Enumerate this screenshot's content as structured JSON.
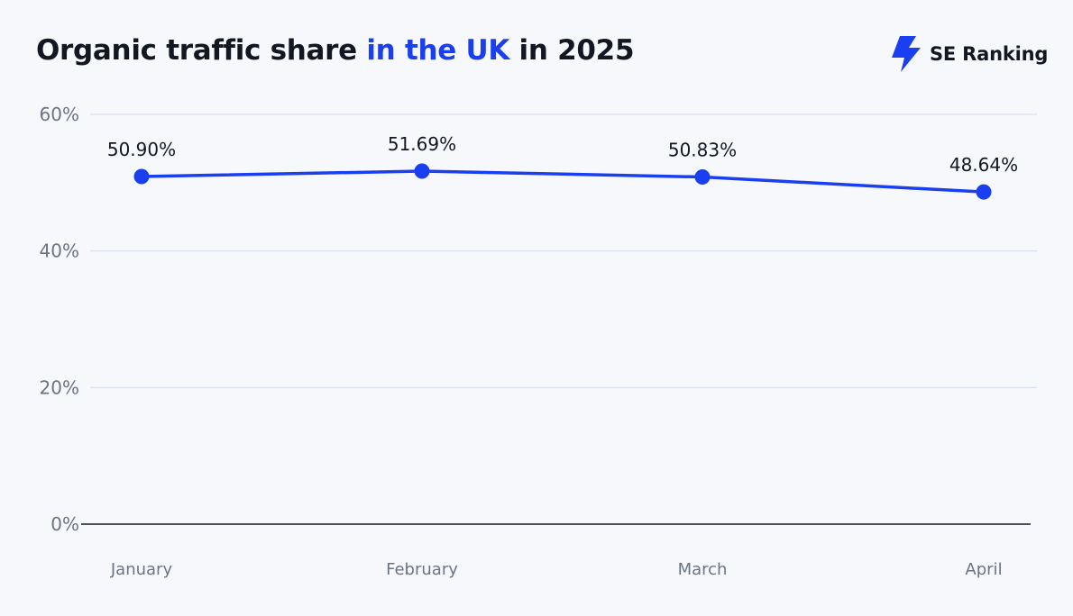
{
  "header": {
    "title_part1": "Organic traffic share ",
    "title_highlight": "in the UK",
    "title_part2": " in 2025"
  },
  "brand": {
    "name": "SE Ranking",
    "icon": "se-ranking-logo-icon"
  },
  "colors": {
    "accent": "#1a3ff0",
    "text": "#121722",
    "muted": "#6b7384",
    "grid": "#dde3ef",
    "background": "#f6f8fc"
  },
  "chart_data": {
    "type": "line",
    "title": "Organic traffic share in the UK in 2025",
    "categories": [
      "January",
      "February",
      "March",
      "April"
    ],
    "series": [
      {
        "values": [
          50.9,
          51.69,
          50.83,
          48.64
        ]
      }
    ],
    "data_labels": [
      "50.90%",
      "51.69%",
      "50.83%",
      "48.64%"
    ],
    "y_ticks": [
      0,
      20,
      40,
      60
    ],
    "y_tick_labels": [
      "0%",
      "20%",
      "40%",
      "60%"
    ],
    "ylim": [
      0,
      60
    ],
    "grid": true,
    "legend": "none"
  }
}
